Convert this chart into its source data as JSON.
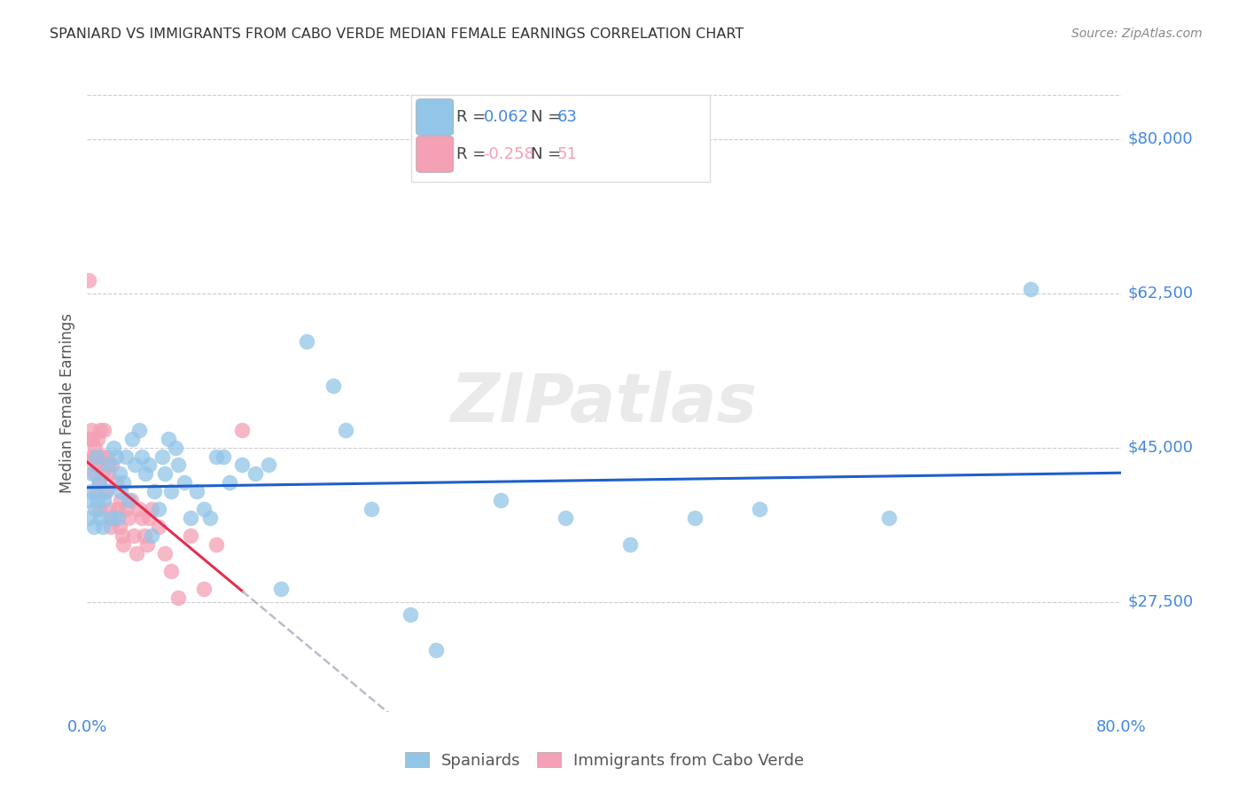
{
  "title": "SPANIARD VS IMMIGRANTS FROM CABO VERDE MEDIAN FEMALE EARNINGS CORRELATION CHART",
  "source": "Source: ZipAtlas.com",
  "ylabel": "Median Female Earnings",
  "ytick_labels": [
    "$27,500",
    "$45,000",
    "$62,500",
    "$80,000"
  ],
  "ytick_values": [
    27500,
    45000,
    62500,
    80000
  ],
  "ymin": 15000,
  "ymax": 85000,
  "xmin": 0.0,
  "xmax": 0.8,
  "watermark": "ZIPatlas",
  "blue_color": "#92C5E8",
  "pink_color": "#F4A0B5",
  "trendline_blue_color": "#1F5FCC",
  "trendline_pink_color": "#E03050",
  "trendline_pink_dashed_color": "#BBBBCC",
  "title_color": "#333333",
  "axis_label_color": "#4488DD",
  "grid_color": "#CCCCCC",
  "blue_scatter_x": [
    0.001,
    0.002,
    0.003,
    0.004,
    0.005,
    0.006,
    0.007,
    0.008,
    0.009,
    0.01,
    0.012,
    0.013,
    0.015,
    0.016,
    0.018,
    0.02,
    0.022,
    0.024,
    0.025,
    0.026,
    0.028,
    0.03,
    0.032,
    0.035,
    0.037,
    0.04,
    0.042,
    0.045,
    0.048,
    0.05,
    0.052,
    0.055,
    0.058,
    0.06,
    0.063,
    0.065,
    0.068,
    0.07,
    0.075,
    0.08,
    0.085,
    0.09,
    0.095,
    0.1,
    0.105,
    0.11,
    0.12,
    0.13,
    0.14,
    0.15,
    0.17,
    0.19,
    0.2,
    0.22,
    0.25,
    0.27,
    0.32,
    0.37,
    0.42,
    0.47,
    0.52,
    0.62,
    0.73
  ],
  "blue_scatter_y": [
    39000,
    37000,
    40000,
    42000,
    36000,
    38000,
    44000,
    39000,
    41000,
    37000,
    36000,
    39000,
    40000,
    43000,
    37000,
    45000,
    44000,
    37000,
    42000,
    40000,
    41000,
    44000,
    39000,
    46000,
    43000,
    47000,
    44000,
    42000,
    43000,
    35000,
    40000,
    38000,
    44000,
    42000,
    46000,
    40000,
    45000,
    43000,
    41000,
    37000,
    40000,
    38000,
    37000,
    44000,
    44000,
    41000,
    43000,
    42000,
    43000,
    29000,
    57000,
    52000,
    47000,
    38000,
    26000,
    22000,
    39000,
    37000,
    34000,
    37000,
    38000,
    37000,
    63000
  ],
  "pink_scatter_x": [
    0.001,
    0.002,
    0.003,
    0.003,
    0.004,
    0.005,
    0.005,
    0.006,
    0.006,
    0.007,
    0.007,
    0.008,
    0.008,
    0.009,
    0.009,
    0.01,
    0.011,
    0.012,
    0.013,
    0.014,
    0.015,
    0.016,
    0.017,
    0.018,
    0.019,
    0.02,
    0.022,
    0.024,
    0.025,
    0.026,
    0.027,
    0.028,
    0.03,
    0.032,
    0.034,
    0.036,
    0.038,
    0.04,
    0.042,
    0.044,
    0.046,
    0.048,
    0.05,
    0.055,
    0.06,
    0.065,
    0.07,
    0.08,
    0.09,
    0.1,
    0.12
  ],
  "pink_scatter_y": [
    64000,
    46000,
    44000,
    47000,
    46000,
    44000,
    43000,
    42000,
    45000,
    44000,
    40000,
    46000,
    43000,
    41000,
    38000,
    47000,
    44000,
    42000,
    47000,
    40000,
    44000,
    42000,
    38000,
    36000,
    43000,
    37000,
    41000,
    38000,
    36000,
    39000,
    35000,
    34000,
    38000,
    37000,
    39000,
    35000,
    33000,
    38000,
    37000,
    35000,
    34000,
    37000,
    38000,
    36000,
    33000,
    31000,
    28000,
    35000,
    29000,
    34000,
    47000
  ]
}
